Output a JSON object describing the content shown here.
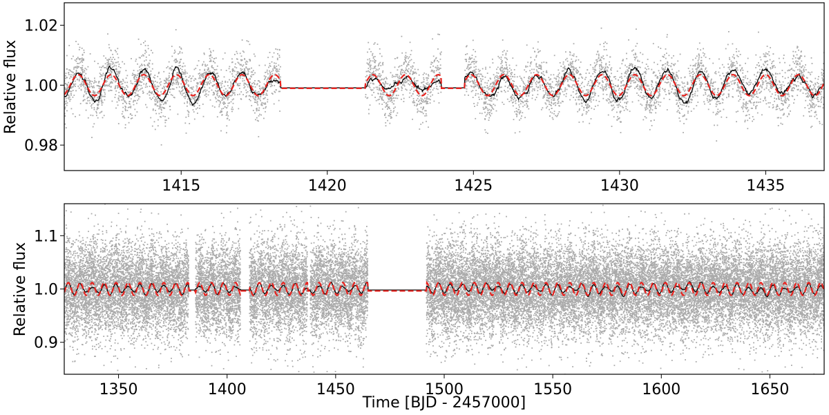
{
  "chart_data": [
    {
      "type": "scatter",
      "xlabel": "",
      "ylabel": "Relative flux",
      "xlim": [
        1411,
        1437
      ],
      "ylim": [
        0.9715,
        1.0275
      ],
      "xticks": [
        1415,
        1420,
        1425,
        1430,
        1435
      ],
      "yticks": [
        0.98,
        1.0,
        1.02
      ],
      "yticks_fmt": 2,
      "gaps": [
        [
          1418.4,
          1421.3
        ],
        [
          1423.9,
          1424.7
        ]
      ],
      "series": [
        {
          "type": "scatter",
          "color": "#aaaaaa",
          "period": 1.12,
          "amplitude": 0.0045,
          "noise": 0.0055,
          "density_per_day": 260
        },
        {
          "type": "line",
          "color": "#000000",
          "period": 1.12,
          "amplitude": 0.0045
        },
        {
          "type": "line-dashed",
          "color": "#e8221e",
          "period": 1.12,
          "amplitude": 0.0035
        }
      ]
    },
    {
      "type": "scatter",
      "xlabel": "Time [BJD - 2457000]",
      "ylabel": "Relative flux",
      "xlim": [
        1325,
        1675
      ],
      "ylim": [
        0.84,
        1.16
      ],
      "xticks": [
        1350,
        1400,
        1450,
        1500,
        1550,
        1600,
        1650
      ],
      "yticks": [
        0.9,
        1.0,
        1.1
      ],
      "yticks_fmt": 1,
      "gaps": [
        [
          1382.3,
          1385.5
        ],
        [
          1406.2,
          1410.3
        ],
        [
          1437.0,
          1438.3
        ],
        [
          1464.8,
          1491.8
        ]
      ],
      "series": [
        {
          "type": "scatter",
          "color": "#aaaaaa",
          "period": 5.5,
          "amplitude": 0.01,
          "noise": 0.055,
          "density_per_day": 110
        },
        {
          "type": "line",
          "color": "#000000",
          "period": 5.5,
          "amplitude": 0.01
        },
        {
          "type": "line-dashed",
          "color": "#e8221e",
          "period": 5.5,
          "amplitude": 0.012
        }
      ]
    }
  ]
}
